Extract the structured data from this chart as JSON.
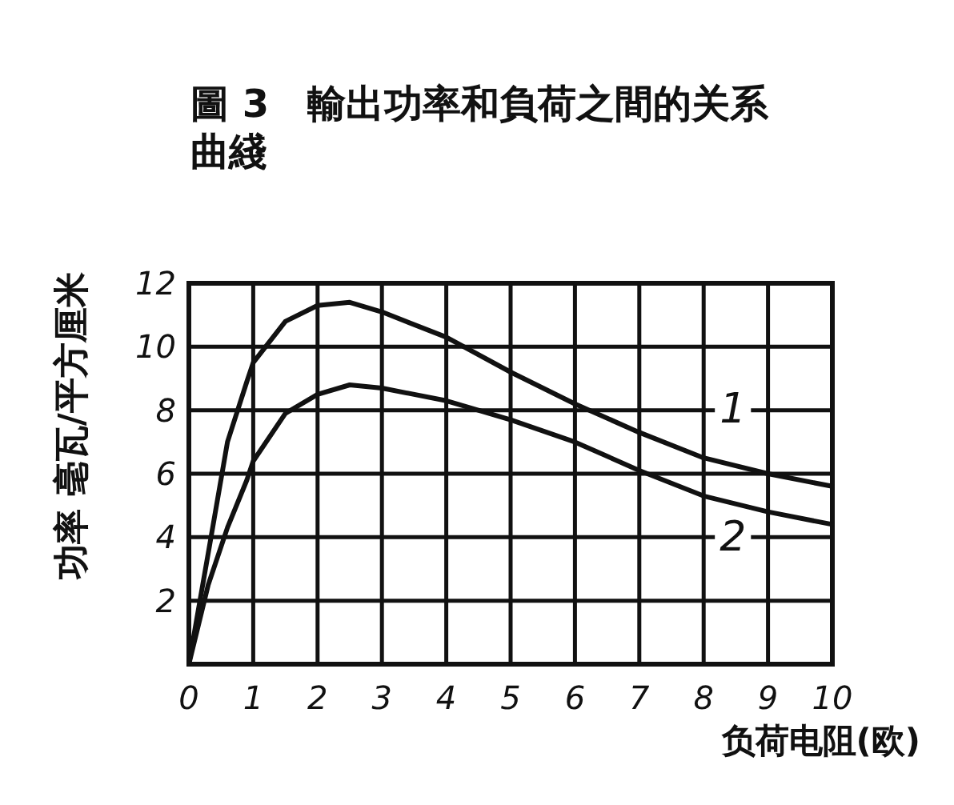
{
  "chart_data": {
    "type": "line",
    "title": "圖 3　輸出功率和負荷之間的关系曲綫",
    "xlabel": "负荷电阻(欧)",
    "ylabel": "功率 毫瓦/平方厘米",
    "x": [
      0,
      0.3,
      0.6,
      0.9,
      1,
      1.5,
      2,
      2.5,
      3,
      4,
      5,
      6,
      7,
      8,
      9,
      10
    ],
    "series": [
      {
        "name": "1",
        "color": "#111111",
        "values": [
          0,
          3.5,
          7,
          8.9,
          9.5,
          10.8,
          11.3,
          11.4,
          11.1,
          10.3,
          9.2,
          8.2,
          7.3,
          6.5,
          6.0,
          5.6
        ]
      },
      {
        "name": "2",
        "color": "#111111",
        "values": [
          0,
          2.5,
          4.3,
          5.8,
          6.4,
          7.9,
          8.5,
          8.8,
          8.7,
          8.3,
          7.7,
          7.0,
          6.1,
          5.3,
          4.8,
          4.4
        ]
      }
    ],
    "xlim": [
      0,
      10
    ],
    "ylim": [
      0,
      12
    ],
    "xticks": [
      0,
      1,
      2,
      3,
      4,
      5,
      6,
      7,
      8,
      9,
      10
    ],
    "yticks": [
      {
        "value": 0,
        "label": null
      },
      2,
      4,
      6,
      8,
      10,
      12
    ],
    "grid": true
  }
}
